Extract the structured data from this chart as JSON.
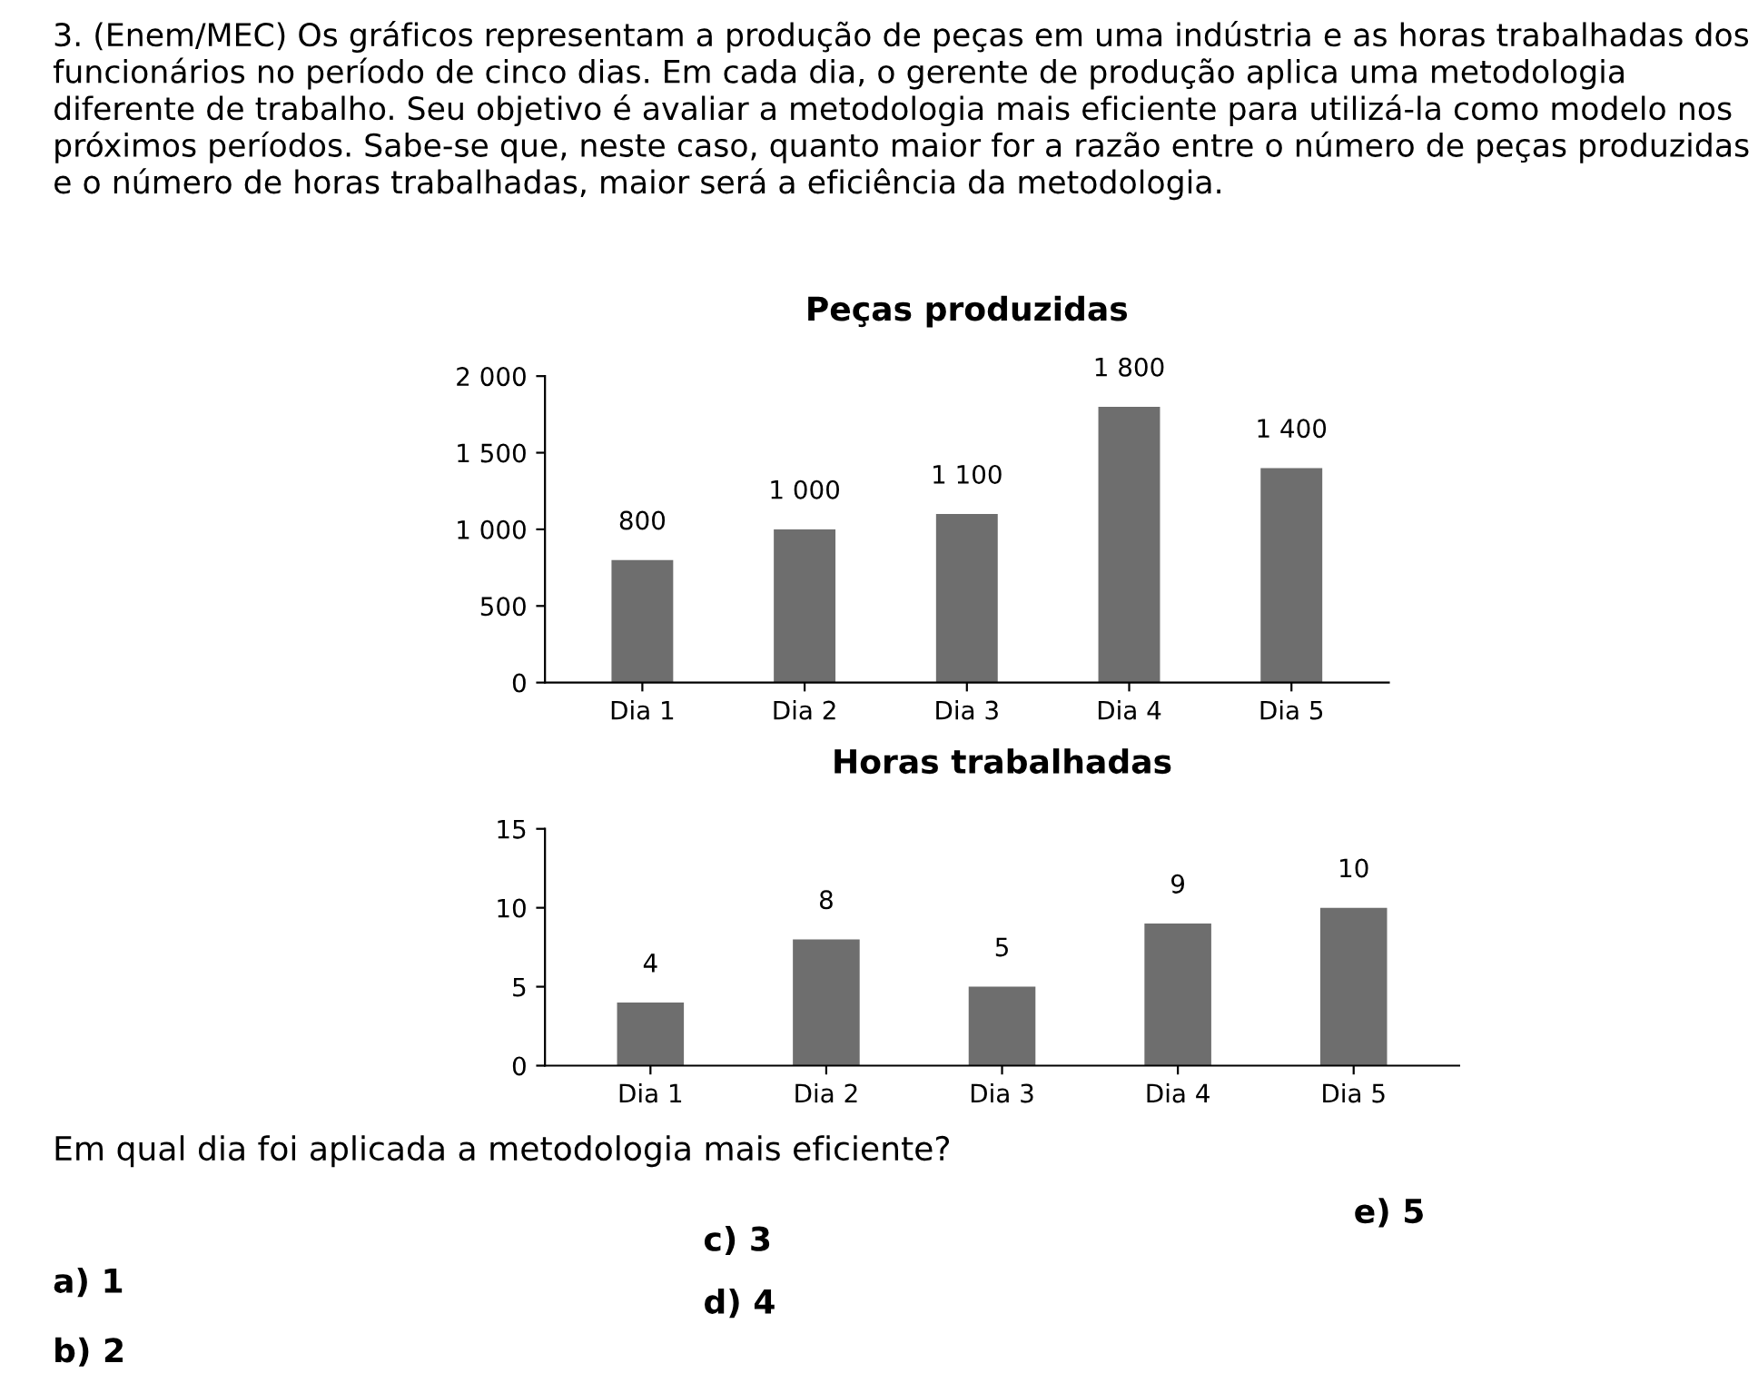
{
  "chart_data": [
    {
      "type": "bar",
      "title": "Peças produzidas",
      "categories": [
        "Dia 1",
        "Dia 2",
        "Dia 3",
        "Dia 4",
        "Dia 5"
      ],
      "values": [
        800,
        1000,
        1100,
        1800,
        1400
      ],
      "value_labels": [
        "800",
        "1 000",
        "1 100",
        "1 800",
        "1 400"
      ],
      "color": "#6e6e6e",
      "ylim": [
        0,
        2000
      ],
      "yticks": [
        0,
        500,
        {
          "value": 1000,
          "label": "1 000"
        },
        {
          "value": 1500,
          "label": "1 500"
        },
        {
          "value": 2000,
          "label": "2 000"
        }
      ],
      "grid": false,
      "annotations": [
        "3. (Enem/MEC) Os gráficos representam a produção de peças em uma indústria e as horas trabalhadas dos funcionários no período de cinco dias. Em cada dia, o gerente de produção aplica uma metodologia diferente de trabalho. Seu objetivo é avaliar a metodologia mais eficiente para utilizá-la como modelo nos próximos períodos. Sabe-se que, neste caso, quanto maior for a razão entre o número de peças produzidas e o número de horas trabalhadas, maior será a eficiência da metodologia."
      ]
    },
    {
      "type": "bar",
      "title": "Horas trabalhadas",
      "categories": [
        "Dia 1",
        "Dia 2",
        "Dia 3",
        "Dia 4",
        "Dia 5"
      ],
      "values": [
        4,
        8,
        5,
        9,
        10
      ],
      "data_labels": true,
      "color": "#6e6e6e",
      "ylim": [
        0,
        15
      ],
      "yticks": [
        0,
        5,
        10,
        15
      ],
      "grid": false,
      "annotations": [
        "Em qual dia foi aplicada a metodologia mais eficiente?",
        "a) 1",
        "b) 2",
        "c) 3",
        "d) 4",
        "e) 5"
      ]
    }
  ]
}
